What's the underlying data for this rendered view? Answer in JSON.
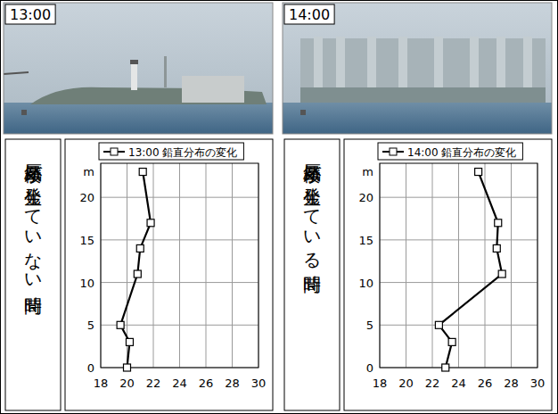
{
  "chart_data": [
    {
      "type": "line",
      "title": "13:00",
      "annotations": [
        "蜃気楼が発生していない時間"
      ],
      "ylabel": "m",
      "x": [
        20.0,
        20.2,
        19.5,
        20.8,
        21.0,
        21.8,
        21.2
      ],
      "series": [
        {
          "name": "13:00 鉛直分布の変化",
          "color": "#000000",
          "marker": "square",
          "values": [
            0,
            3,
            5,
            11,
            14,
            17,
            23
          ]
        }
      ],
      "xlim": [
        18,
        30
      ],
      "xticks": [
        18,
        20,
        22,
        24,
        26,
        28,
        30
      ],
      "ylim": [
        0,
        24
      ],
      "yticks": [
        0,
        5,
        10,
        15,
        20
      ],
      "grid": true,
      "legend": "top"
    },
    {
      "type": "line",
      "title": "14:00",
      "annotations": [
        "蜃気楼が発生している時間"
      ],
      "ylabel": "m",
      "x": [
        23.0,
        23.5,
        22.5,
        27.3,
        26.9,
        27.0,
        25.5
      ],
      "series": [
        {
          "name": "14:00 鉛直分布の変化",
          "color": "#000000",
          "marker": "square",
          "values": [
            0,
            3,
            5,
            11,
            14,
            17,
            23
          ]
        }
      ],
      "xlim": [
        18,
        30
      ],
      "xticks": [
        18,
        20,
        22,
        24,
        26,
        28,
        30
      ],
      "ylim": [
        0,
        24
      ],
      "yticks": [
        0,
        5,
        10,
        15,
        20
      ],
      "grid": true,
      "legend": "top"
    }
  ]
}
